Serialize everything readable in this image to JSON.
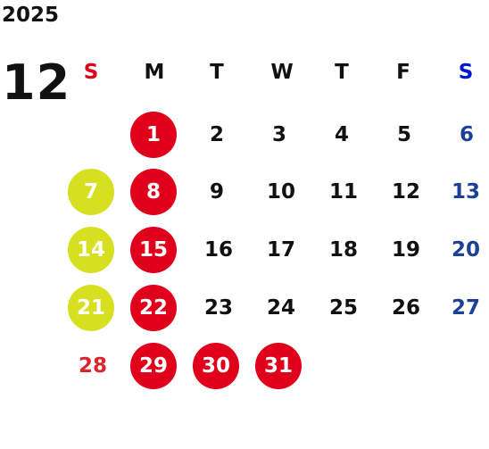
{
  "year": "2025",
  "month": "12",
  "weekdays": [
    "S",
    "M",
    "T",
    "W",
    "T",
    "F",
    "S"
  ],
  "days": {
    "d1": "1",
    "d2": "2",
    "d3": "3",
    "d4": "4",
    "d5": "5",
    "d6": "6",
    "d7": "7",
    "d8": "8",
    "d9": "9",
    "d10": "10",
    "d11": "11",
    "d12": "12",
    "d13": "13",
    "d14": "14",
    "d15": "15",
    "d16": "16",
    "d17": "17",
    "d18": "18",
    "d19": "19",
    "d20": "20",
    "d21": "21",
    "d22": "22",
    "d23": "23",
    "d24": "24",
    "d25": "25",
    "d26": "26",
    "d27": "27",
    "d28": "28",
    "d29": "29",
    "d30": "30",
    "d31": "31"
  },
  "colors": {
    "holiday_circle": "#e0001b",
    "highlight_circle": "#d7df21",
    "sunday_header": "#e0001b",
    "saturday_header": "#0018d6",
    "saturday_text": "#1c3f98",
    "sunday_text": "#d8262d"
  }
}
